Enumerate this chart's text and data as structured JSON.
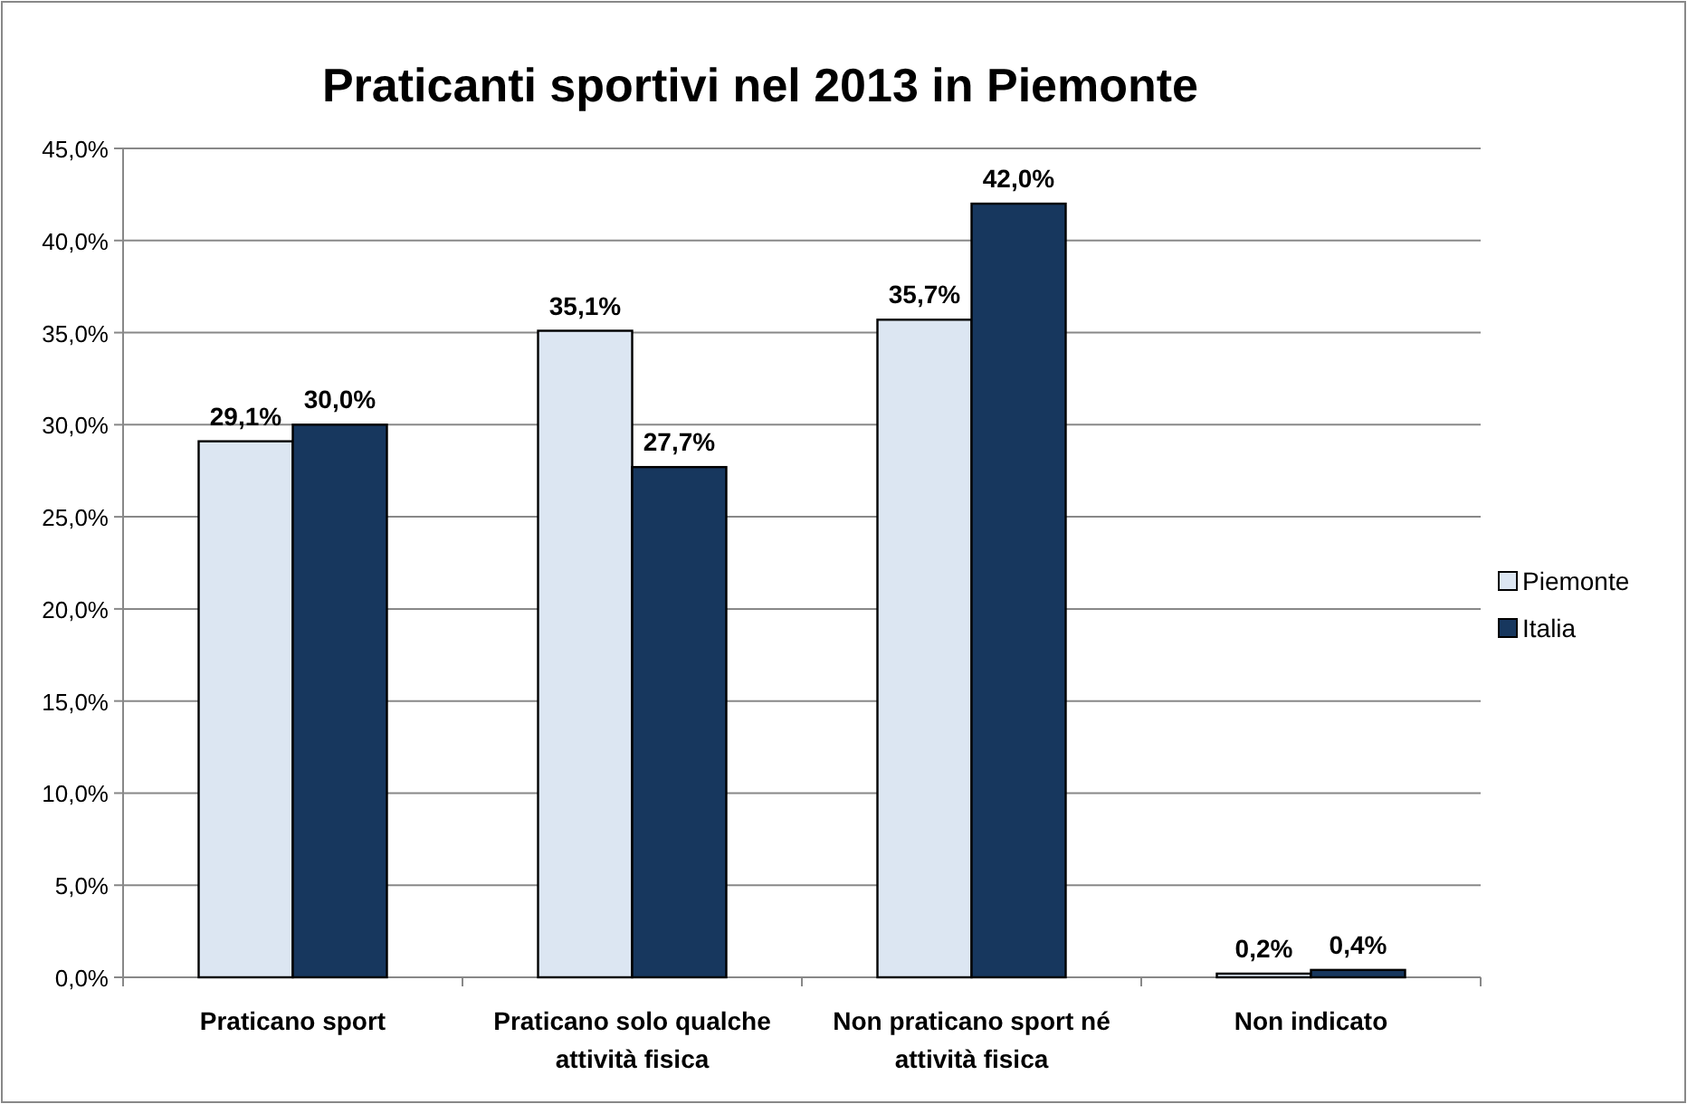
{
  "chart_data": {
    "type": "bar",
    "title": "Praticanti sportivi nel 2013 in Piemonte",
    "categories": [
      "Praticano sport",
      "Praticano solo qualche attività fisica",
      "Non praticano sport né attività fisica",
      "Non indicato"
    ],
    "series": [
      {
        "name": "Piemonte",
        "color": "#dce6f2",
        "values": [
          29.1,
          35.1,
          35.7,
          0.2
        ],
        "value_labels": [
          "29,1%",
          "35,1%",
          "35,7%",
          "0,2%"
        ]
      },
      {
        "name": "Italia",
        "color": "#17375e",
        "values": [
          30.0,
          27.7,
          42.0,
          0.4
        ],
        "value_labels": [
          "30,0%",
          "27,7%",
          "42,0%",
          "0,4%"
        ]
      }
    ],
    "ylim": [
      0,
      45
    ],
    "yticks": [
      {
        "value": 0,
        "label": "0,0%"
      },
      {
        "value": 5,
        "label": "5,0%"
      },
      {
        "value": 10,
        "label": "10,0%"
      },
      {
        "value": 15,
        "label": "15,0%"
      },
      {
        "value": 20,
        "label": "20,0%"
      },
      {
        "value": 25,
        "label": "25,0%"
      },
      {
        "value": 30,
        "label": "30,0%"
      },
      {
        "value": 35,
        "label": "35,0%"
      },
      {
        "value": 40,
        "label": "40,0%"
      },
      {
        "value": 45,
        "label": "45,0%"
      }
    ],
    "grid": "y",
    "legend": "right"
  }
}
